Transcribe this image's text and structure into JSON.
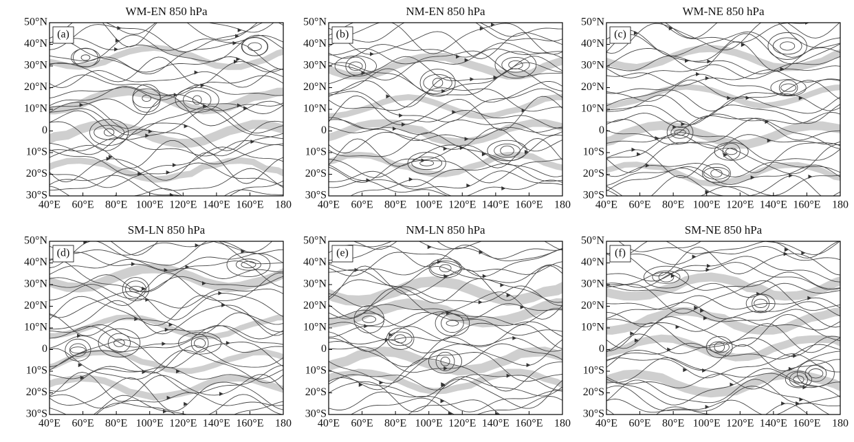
{
  "panels": [
    {
      "title": "WM-EN 850 hPa",
      "label": "(a)"
    },
    {
      "title": "NM-EN 850 hPa",
      "label": "(b)"
    },
    {
      "title": "WM-NE 850 hPa",
      "label": "(c)"
    },
    {
      "title": "SM-LN 850 hPa",
      "label": "(d)"
    },
    {
      "title": "NM-LN 850 hPa",
      "label": "(e)"
    },
    {
      "title": "SM-NE 850 hPa",
      "label": "(f)"
    }
  ],
  "lat_labels": [
    "50°N",
    "40°N",
    "30°N",
    "20°N",
    "10°N",
    "0",
    "10°S",
    "20°S",
    "30°S"
  ],
  "lon_labels": [
    "40°E",
    "60°E",
    "80°E",
    "100°E",
    "120°E",
    "140°E",
    "160°E",
    "180"
  ]
}
